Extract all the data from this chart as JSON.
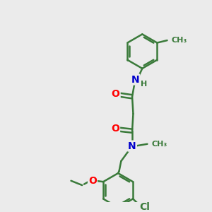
{
  "background_color": "#ebebeb",
  "bond_color": "#3a7a3a",
  "bond_width": 1.8,
  "atom_colors": {
    "O": "#ff0000",
    "N": "#0000cc",
    "Cl": "#3a7a3a",
    "H": "#3a7a3a",
    "C": "#3a7a3a"
  },
  "font_size_large": 10,
  "font_size_small": 8
}
